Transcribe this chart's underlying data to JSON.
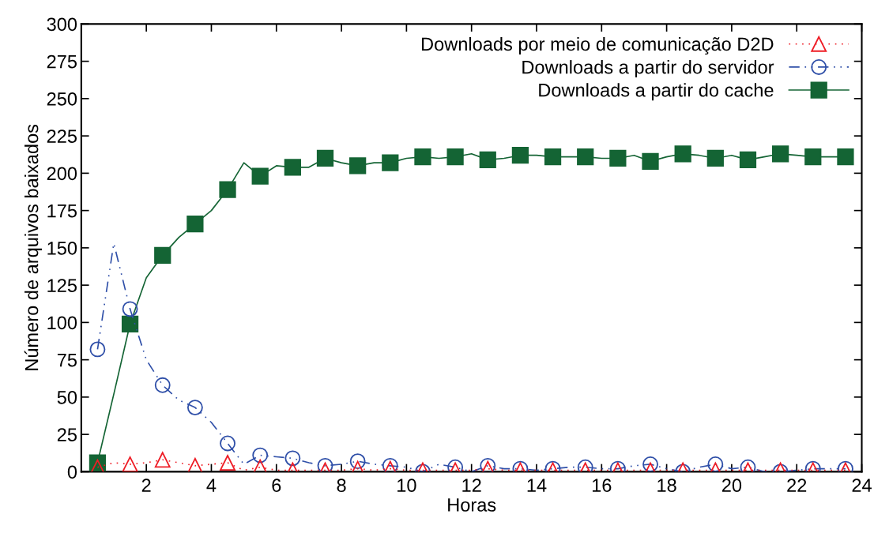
{
  "chart_data": {
    "type": "line",
    "xlabel": "Horas",
    "ylabel": "Número de arquivos baixados",
    "xlim": [
      0,
      24
    ],
    "xticks": [
      2,
      4,
      6,
      8,
      10,
      12,
      14,
      16,
      18,
      20,
      22,
      24
    ],
    "ylim": [
      0,
      300
    ],
    "yticks": [
      0,
      25,
      50,
      75,
      100,
      125,
      150,
      175,
      200,
      225,
      250,
      275,
      300
    ],
    "grid": false,
    "legend": "top right",
    "series": [
      {
        "name": "Downloads por meio de comunicação D2D",
        "color": "#ee1c25",
        "marker": "triangle",
        "line_style": "dotted",
        "x": [
          0.5,
          1,
          1.5,
          2,
          2.5,
          3,
          3.5,
          4,
          4.5,
          5,
          5.5,
          6,
          6.5,
          7,
          7.5,
          8,
          8.5,
          9,
          9.5,
          10,
          10.5,
          11,
          11.5,
          12,
          12.5,
          13,
          13.5,
          14,
          14.5,
          15,
          15.5,
          16,
          16.5,
          17,
          17.5,
          18,
          18.5,
          19,
          19.5,
          20,
          20.5,
          21,
          21.5,
          22,
          22.5,
          23,
          23.5
        ],
        "values": [
          3,
          6,
          5,
          6,
          8,
          6,
          4,
          5,
          6,
          1,
          3,
          1,
          1,
          1,
          1,
          1,
          2,
          1,
          2,
          1,
          1,
          1,
          1,
          1,
          2,
          1,
          1,
          1,
          1,
          1,
          1,
          1,
          1,
          1,
          1,
          1,
          1,
          1,
          1,
          1,
          1,
          1,
          1,
          1,
          1,
          1,
          1
        ]
      },
      {
        "name": "Downloads a partir do servidor",
        "color": "#2f4fa8",
        "marker": "circle",
        "line_style": "dashdot",
        "x": [
          0.5,
          1,
          1.5,
          2,
          2.5,
          3,
          3.5,
          4,
          4.5,
          5,
          5.5,
          6,
          6.5,
          7,
          7.5,
          8,
          8.5,
          9,
          9.5,
          10,
          10.5,
          11,
          11.5,
          12,
          12.5,
          13,
          13.5,
          14,
          14.5,
          15,
          15.5,
          16,
          16.5,
          17,
          17.5,
          18,
          18.5,
          19,
          19.5,
          20,
          20.5,
          21,
          21.5,
          22,
          22.5,
          23,
          23.5
        ],
        "values": [
          82,
          153,
          109,
          75,
          58,
          48,
          43,
          33,
          19,
          5,
          11,
          10,
          9,
          6,
          4,
          5,
          7,
          5,
          4,
          3,
          0,
          5,
          3,
          0,
          4,
          2,
          2,
          1,
          2,
          3,
          3,
          2,
          2,
          4,
          5,
          2,
          0,
          3,
          5,
          2,
          3,
          0,
          0,
          1,
          2,
          2,
          2
        ]
      },
      {
        "name": "Downloads a partir do cache",
        "color": "#146434",
        "marker": "square",
        "line_style": "solid",
        "x": [
          0.5,
          1,
          1.5,
          2,
          2.5,
          3,
          3.5,
          4,
          4.5,
          5,
          5.5,
          6,
          6.5,
          7,
          7.5,
          8,
          8.5,
          9,
          9.5,
          10,
          10.5,
          11,
          11.5,
          12,
          12.5,
          13,
          13.5,
          14,
          14.5,
          15,
          15.5,
          16,
          16.5,
          17,
          17.5,
          18,
          18.5,
          19,
          19.5,
          20,
          20.5,
          21,
          21.5,
          22,
          22.5,
          23,
          23.5
        ],
        "values": [
          6,
          52,
          99,
          130,
          145,
          157,
          166,
          175,
          189,
          207,
          198,
          205,
          204,
          204,
          210,
          207,
          205,
          207,
          207,
          210,
          211,
          210,
          211,
          213,
          209,
          210,
          212,
          212,
          211,
          211,
          211,
          210,
          210,
          212,
          208,
          211,
          213,
          212,
          210,
          212,
          209,
          211,
          213,
          212,
          211,
          211,
          211
        ]
      }
    ]
  }
}
